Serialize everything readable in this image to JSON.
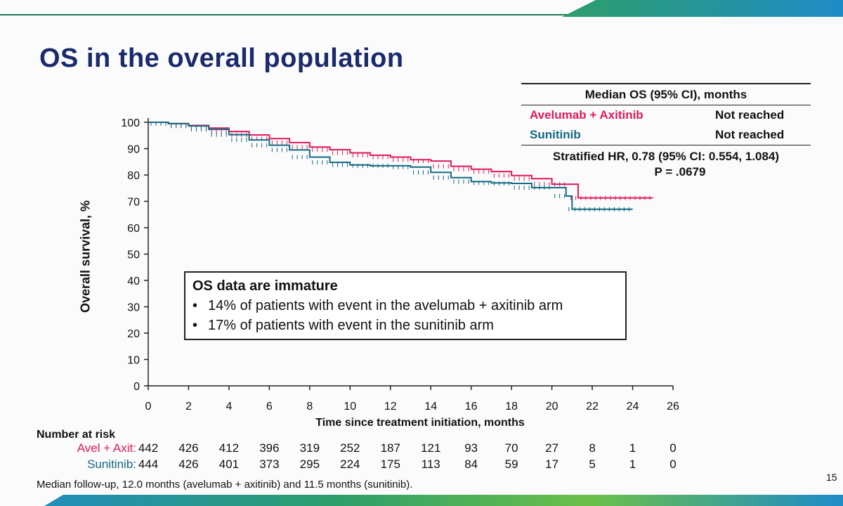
{
  "slide": {
    "title": "OS in the overall population",
    "page_number": "15",
    "footnote": "Median follow-up, 12.0 months (avelumab + axitinib) and 11.5 months (sunitinib)."
  },
  "legend_table": {
    "header": "Median OS (95% CI), months",
    "rows": [
      {
        "name": "Avelumab + Axitinib",
        "value": "Not reached",
        "color": "#e0195a"
      },
      {
        "name": "Sunitinib",
        "value": "Not reached",
        "color": "#116a82"
      }
    ],
    "hr_text": "Stratified HR, 0.78 (95% CI: 0.554, 1.084)",
    "p_text": "P = .0679"
  },
  "note_box": {
    "heading": "OS data are immature",
    "bullets": [
      "14% of patients with event in the avelumab + axitinib arm",
      "17% of patients with event in the sunitinib arm"
    ]
  },
  "risk_table": {
    "title": "Number at risk",
    "rows": [
      {
        "label": "Avel + Axit:",
        "color": "#e0195a",
        "values": [
          "442",
          "426",
          "412",
          "396",
          "319",
          "252",
          "187",
          "121",
          "93",
          "70",
          "27",
          "8",
          "1",
          "0"
        ]
      },
      {
        "label": "Sunitinib:",
        "color": "#116a82",
        "values": [
          "444",
          "426",
          "401",
          "373",
          "295",
          "224",
          "175",
          "113",
          "84",
          "59",
          "17",
          "5",
          "1",
          "0"
        ]
      }
    ]
  },
  "chart_data": {
    "type": "line",
    "xlabel": "Time since treatment initiation, months",
    "ylabel": "Overall survival, %",
    "xlim": [
      0,
      26
    ],
    "ylim": [
      0,
      100
    ],
    "xticks": [
      0,
      2,
      4,
      6,
      8,
      10,
      12,
      14,
      16,
      18,
      20,
      22,
      24,
      26
    ],
    "yticks": [
      0,
      10,
      20,
      30,
      40,
      50,
      60,
      70,
      80,
      90,
      100
    ],
    "step": true,
    "series": [
      {
        "name": "Avelumab + Axitinib",
        "color": "#e0195a",
        "points": [
          [
            0,
            100
          ],
          [
            1,
            99.5
          ],
          [
            2,
            98.8
          ],
          [
            3,
            97.8
          ],
          [
            4,
            96.5
          ],
          [
            5,
            95.2
          ],
          [
            6,
            93.8
          ],
          [
            7,
            92.3
          ],
          [
            8,
            90.6
          ],
          [
            9,
            89.6
          ],
          [
            10,
            88.4
          ],
          [
            11,
            87.5
          ],
          [
            12,
            86.8
          ],
          [
            13,
            85.8
          ],
          [
            14,
            85.3
          ],
          [
            15,
            83.3
          ],
          [
            16,
            82.2
          ],
          [
            17,
            81.3
          ],
          [
            18,
            79.8
          ],
          [
            19,
            78.6
          ],
          [
            20,
            76.5
          ],
          [
            20.8,
            76.5
          ],
          [
            21.3,
            71.3
          ],
          [
            25,
            71.3
          ]
        ]
      },
      {
        "name": "Sunitinib",
        "color": "#116a82",
        "points": [
          [
            0,
            100
          ],
          [
            1,
            99.5
          ],
          [
            2,
            98.6
          ],
          [
            3,
            97.3
          ],
          [
            4,
            95.3
          ],
          [
            5,
            93.3
          ],
          [
            6,
            91.3
          ],
          [
            7,
            89.5
          ],
          [
            8,
            86.8
          ],
          [
            9,
            84.8
          ],
          [
            10,
            83.8
          ],
          [
            11,
            83.5
          ],
          [
            12,
            83.5
          ],
          [
            13,
            83.0
          ],
          [
            14,
            81.0
          ],
          [
            15,
            79.0
          ],
          [
            16,
            77.5
          ],
          [
            17,
            77.0
          ],
          [
            18,
            76.8
          ],
          [
            19,
            75.2
          ],
          [
            20,
            75.2
          ],
          [
            20.7,
            72.0
          ],
          [
            21.0,
            67.0
          ],
          [
            24,
            67.0
          ]
        ]
      }
    ]
  }
}
